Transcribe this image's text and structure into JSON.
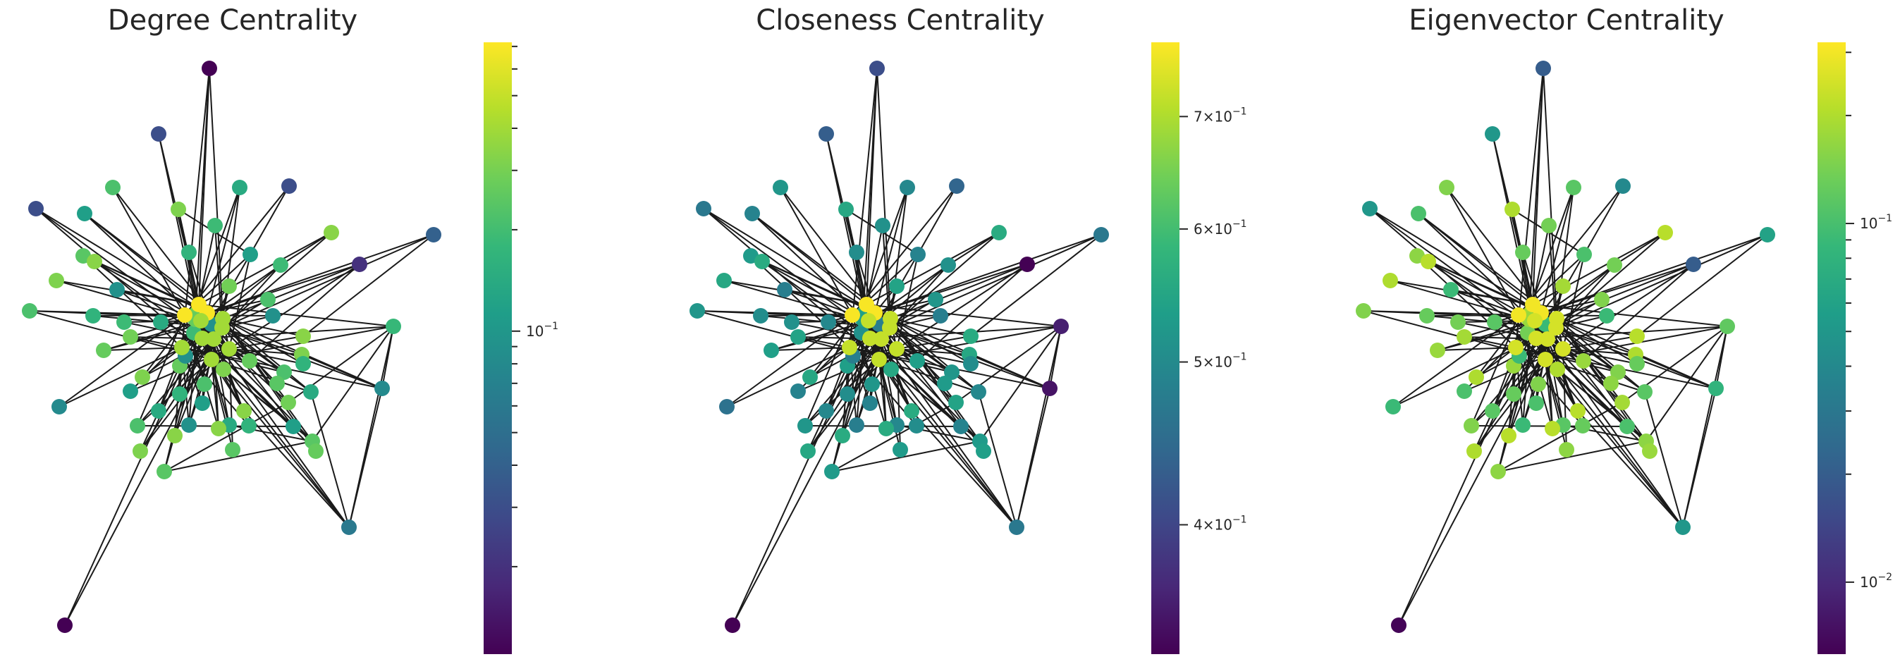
{
  "colormap": "viridis",
  "viridis_stops": [
    "#440154",
    "#482878",
    "#3e4989",
    "#31688e",
    "#26828e",
    "#1f9e89",
    "#35b779",
    "#6ece58",
    "#b5de2b",
    "#fde725"
  ],
  "edge_color": "#1a1a1a",
  "chart_data": [
    {
      "type": "network",
      "title": "Degree Centrality",
      "colorbar": {
        "scale": "log",
        "range": [
          0.011,
          0.72
        ],
        "labeled_ticks": [
          {
            "value": 0.1,
            "base": "10",
            "exp": "−1"
          }
        ],
        "minor_ticks": [
          0.02,
          0.03,
          0.04,
          0.05,
          0.06,
          0.07,
          0.08,
          0.09,
          0.2,
          0.3,
          0.4,
          0.5,
          0.6,
          0.7
        ]
      }
    },
    {
      "type": "network",
      "title": "Closeness Centrality",
      "colorbar": {
        "scale": "log",
        "range": [
          0.335,
          0.775
        ],
        "labeled_ticks": [
          {
            "value": 0.4,
            "base": "4×10",
            "exp": "−1"
          },
          {
            "value": 0.5,
            "base": "5×10",
            "exp": "−1"
          },
          {
            "value": 0.6,
            "base": "6×10",
            "exp": "−1"
          },
          {
            "value": 0.7,
            "base": "7×10",
            "exp": "−1"
          }
        ],
        "minor_ticks": []
      }
    },
    {
      "type": "network",
      "title": "Eigenvector Centrality",
      "colorbar": {
        "scale": "log",
        "range": [
          0.0063,
          0.32
        ],
        "labeled_ticks": [
          {
            "value": 0.01,
            "base": "10",
            "exp": "−2"
          },
          {
            "value": 0.1,
            "base": "10",
            "exp": "−1"
          }
        ],
        "minor_ticks": [
          0.02,
          0.03,
          0.04,
          0.05,
          0.06,
          0.07,
          0.08,
          0.09,
          0.2,
          0.3
        ]
      }
    }
  ]
}
